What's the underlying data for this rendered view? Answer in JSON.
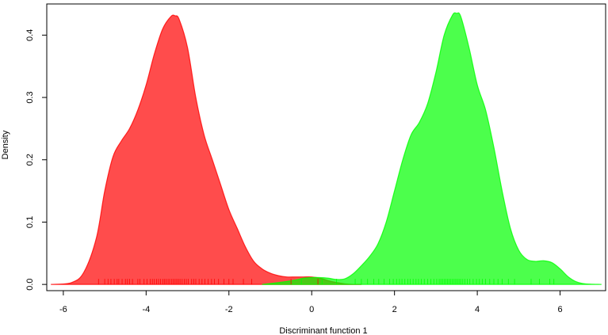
{
  "chart_data": {
    "type": "area",
    "title": "",
    "xlabel": "Discriminant function 1",
    "ylabel": "Density",
    "xlim": [
      -6.4,
      7.1
    ],
    "ylim": [
      -0.01,
      0.45
    ],
    "x_ticks": [
      -6,
      -4,
      -2,
      0,
      2,
      4,
      6
    ],
    "x_tick_labels": [
      "-6",
      "-4",
      "-2",
      "0",
      "2",
      "4",
      "6"
    ],
    "y_ticks": [
      0.0,
      0.1,
      0.2,
      0.3,
      0.4
    ],
    "y_tick_labels": [
      "0.0",
      "0.1",
      "0.2",
      "0.3",
      "0.4"
    ],
    "grid": false,
    "series": [
      {
        "color": "#FF0000",
        "fill_opacity": 0.7,
        "x": [
          -6.3,
          -5.8,
          -5.5,
          -5.2,
          -5.0,
          -4.8,
          -4.6,
          -4.4,
          -4.2,
          -4.0,
          -3.8,
          -3.6,
          -3.4,
          -3.3,
          -3.2,
          -3.0,
          -2.8,
          -2.6,
          -2.4,
          -2.2,
          -2.0,
          -1.8,
          -1.6,
          -1.4,
          -1.2,
          -1.0,
          -0.8,
          -0.6,
          -0.4,
          -0.2,
          0.0,
          0.2,
          0.4,
          0.6,
          0.8,
          1.0,
          1.2
        ],
        "y": [
          0.0,
          0.003,
          0.02,
          0.075,
          0.15,
          0.205,
          0.23,
          0.25,
          0.28,
          0.32,
          0.37,
          0.41,
          0.43,
          0.431,
          0.425,
          0.38,
          0.3,
          0.24,
          0.2,
          0.16,
          0.12,
          0.09,
          0.06,
          0.037,
          0.025,
          0.018,
          0.014,
          0.012,
          0.012,
          0.012,
          0.012,
          0.01,
          0.006,
          0.003,
          0.001,
          0.0,
          0.0
        ],
        "rug": [
          -5.15,
          -5.0,
          -4.92,
          -4.85,
          -4.77,
          -4.7,
          -4.66,
          -4.58,
          -4.5,
          -4.45,
          -4.4,
          -4.33,
          -4.2,
          -4.15,
          -4.05,
          -3.98,
          -3.9,
          -3.85,
          -3.8,
          -3.75,
          -3.7,
          -3.65,
          -3.6,
          -3.56,
          -3.52,
          -3.47,
          -3.43,
          -3.38,
          -3.34,
          -3.3,
          -3.26,
          -3.22,
          -3.18,
          -3.13,
          -3.08,
          -3.03,
          -2.98,
          -2.9,
          -2.85,
          -2.8,
          -2.72,
          -2.65,
          -2.58,
          -2.5,
          -2.42,
          -2.35,
          -2.25,
          -2.12,
          -2.0,
          -1.9,
          -1.65,
          -1.45,
          -0.5,
          0.15
        ]
      },
      {
        "color": "#00FF00",
        "fill_opacity": 0.7,
        "x": [
          -1.2,
          -0.8,
          -0.4,
          -0.2,
          0.0,
          0.2,
          0.4,
          0.6,
          0.8,
          1.0,
          1.2,
          1.4,
          1.6,
          1.8,
          2.0,
          2.2,
          2.4,
          2.6,
          2.8,
          3.0,
          3.2,
          3.4,
          3.5,
          3.6,
          3.8,
          4.0,
          4.2,
          4.4,
          4.6,
          4.8,
          5.0,
          5.2,
          5.4,
          5.6,
          5.8,
          6.0,
          6.2,
          6.4,
          6.6,
          7.0
        ],
        "y": [
          0.0,
          0.003,
          0.007,
          0.01,
          0.011,
          0.011,
          0.01,
          0.008,
          0.009,
          0.017,
          0.03,
          0.045,
          0.065,
          0.1,
          0.15,
          0.2,
          0.24,
          0.26,
          0.29,
          0.34,
          0.4,
          0.432,
          0.435,
          0.43,
          0.38,
          0.32,
          0.28,
          0.22,
          0.15,
          0.09,
          0.055,
          0.04,
          0.037,
          0.038,
          0.035,
          0.025,
          0.012,
          0.004,
          0.001,
          0.0
        ],
        "rug": [
          -0.25,
          0.25,
          0.6,
          1.05,
          1.2,
          1.35,
          1.5,
          1.62,
          1.75,
          1.88,
          1.97,
          2.05,
          2.12,
          2.18,
          2.25,
          2.32,
          2.38,
          2.45,
          2.52,
          2.58,
          2.65,
          2.72,
          2.8,
          2.88,
          2.95,
          3.02,
          3.08,
          3.12,
          3.16,
          3.2,
          3.24,
          3.28,
          3.32,
          3.36,
          3.4,
          3.44,
          3.48,
          3.52,
          3.56,
          3.6,
          3.65,
          3.7,
          3.76,
          3.82,
          3.9,
          3.98,
          4.05,
          4.12,
          4.2,
          4.3,
          4.4,
          4.5,
          4.6,
          4.75,
          4.9,
          5.3,
          5.5,
          5.75,
          5.85
        ]
      }
    ]
  }
}
